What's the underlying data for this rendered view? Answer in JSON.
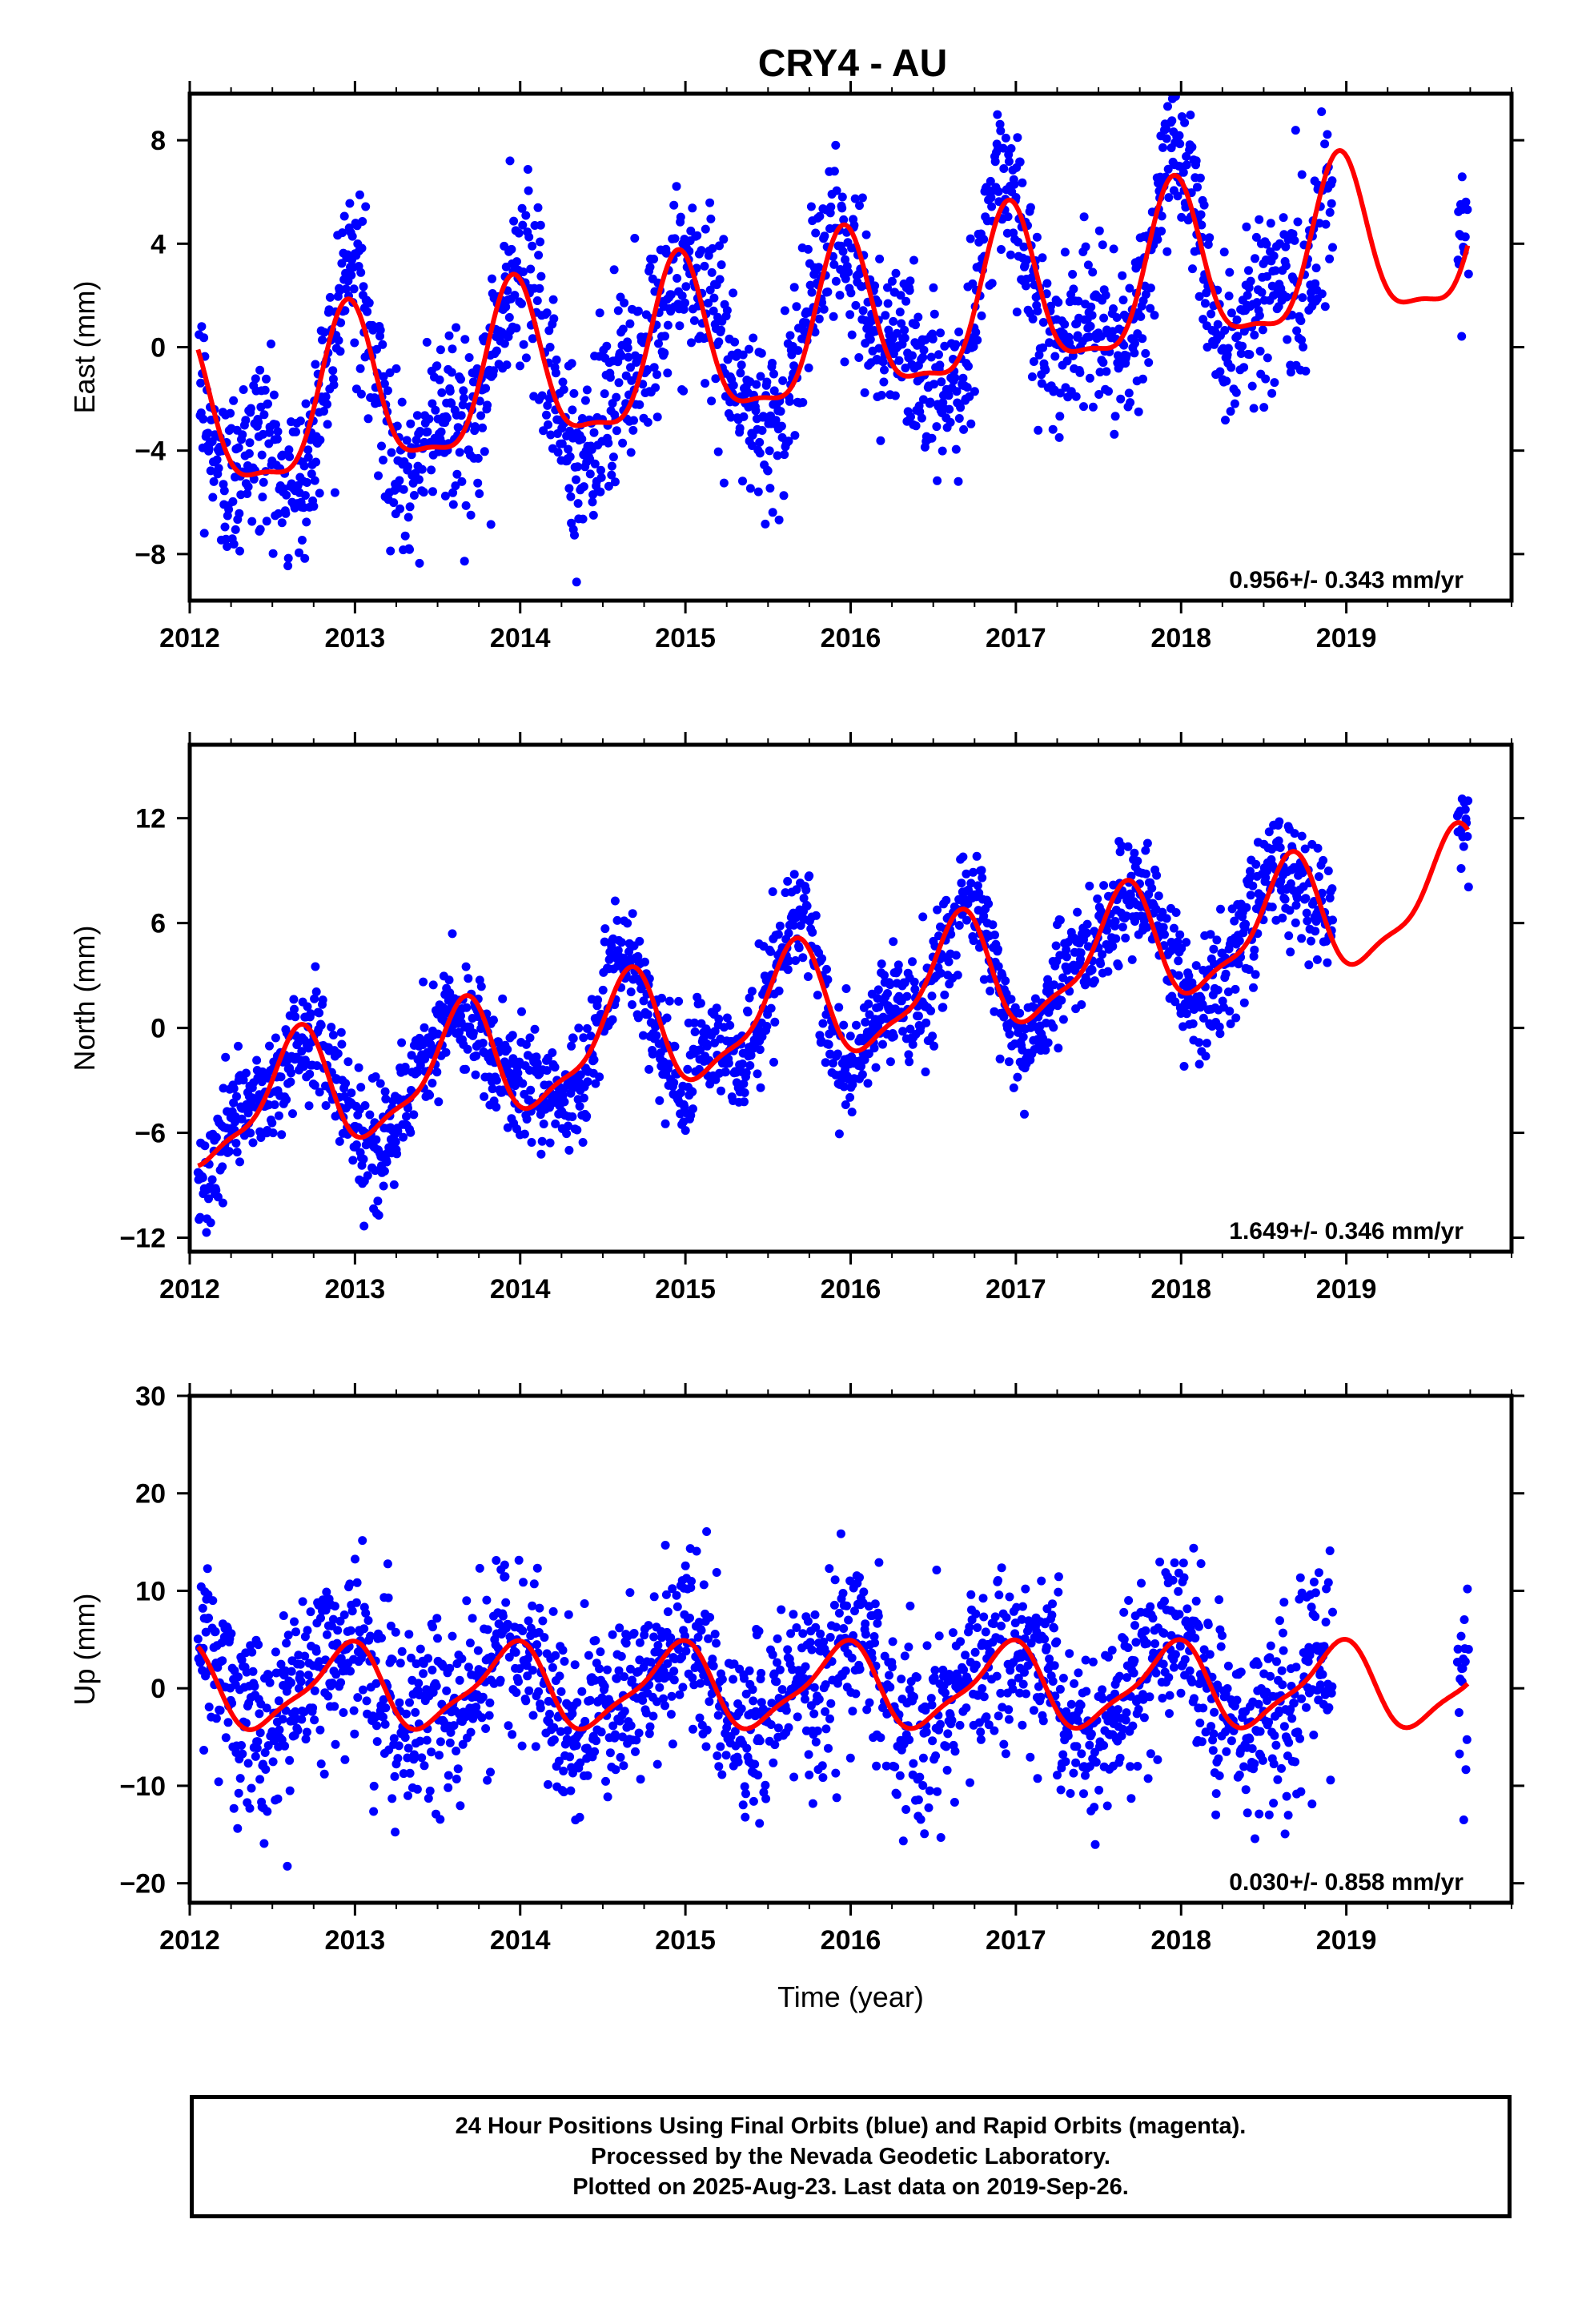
{
  "figure": {
    "title": "CRY4 - AU"
  },
  "chart_data": [
    {
      "type": "scatter",
      "ylabel": "East (mm)",
      "xlabel": "",
      "xlim": [
        2012,
        2020
      ],
      "ylim": [
        -9.8,
        9.8
      ],
      "xticks": [
        "2012",
        "2013",
        "2014",
        "2015",
        "2016",
        "2017",
        "2018",
        "2019"
      ],
      "yticks": [
        "8",
        "4",
        "0",
        "−4",
        "−8"
      ],
      "ytick_values": [
        8,
        4,
        0,
        -4,
        -8
      ],
      "rate_label": "0.956+/- 0.343 mm/yr",
      "points_color": "#0000ff",
      "model_color": "#ff0000",
      "data_range": [
        2012.05,
        2019.74
      ],
      "model": {
        "trend": 0.956,
        "offset": -3.1,
        "annual_sin": -0.8,
        "annual_cos": 3.0,
        "semi_sin": -0.5,
        "semi_cos": 0.8
      },
      "scatter_sd": 1.7,
      "gaps": [
        [
          2018.92,
          2019.67
        ]
      ]
    },
    {
      "type": "scatter",
      "ylabel": "North (mm)",
      "xlabel": "",
      "xlim": [
        2012,
        2020
      ],
      "ylim": [
        -12.8,
        16.2
      ],
      "xticks": [
        "2012",
        "2013",
        "2014",
        "2015",
        "2016",
        "2017",
        "2018",
        "2019"
      ],
      "yticks": [
        "12",
        "6",
        "0",
        "−6",
        "−12"
      ],
      "ytick_values": [
        12,
        6,
        0,
        -6,
        -12
      ],
      "rate_label": "1.649+/- 0.346 mm/yr",
      "points_color": "#0000ff",
      "model_color": "#ff0000",
      "data_range": [
        2012.05,
        2019.74
      ],
      "model": {
        "trend": 1.649,
        "offset": -5.0,
        "annual_sin": -2.5,
        "annual_cos": -2.0,
        "semi_sin": 0.6,
        "semi_cos": -0.8
      },
      "scatter_sd": 1.6,
      "gaps": [
        [
          2018.92,
          2019.67
        ]
      ]
    },
    {
      "type": "scatter",
      "ylabel": "Up (mm)",
      "xlabel": "Time (year)",
      "xlim": [
        2012,
        2020
      ],
      "ylim": [
        -22,
        30
      ],
      "xticks": [
        "2012",
        "2013",
        "2014",
        "2015",
        "2016",
        "2017",
        "2018",
        "2019"
      ],
      "yticks": [
        "30",
        "20",
        "10",
        "0",
        "−10",
        "−20"
      ],
      "ytick_values": [
        30,
        20,
        10,
        0,
        -10,
        -20
      ],
      "rate_label": "0.030+/- 0.858 mm/yr",
      "points_color": "#0000ff",
      "model_color": "#ff0000",
      "data_range": [
        2012.05,
        2019.74
      ],
      "model": {
        "trend": 0.03,
        "offset": 0.0,
        "annual_sin": -1.5,
        "annual_cos": 3.8,
        "semi_sin": 0.5,
        "semi_cos": 1.0
      },
      "scatter_sd": 4.6,
      "gaps": [
        [
          2018.92,
          2019.67
        ]
      ]
    }
  ],
  "caption": {
    "line1": "24 Hour Positions Using Final Orbits (blue) and Rapid Orbits (magenta).",
    "line2": "Processed by the Nevada Geodetic Laboratory.",
    "line3": "Plotted on 2025-Aug-23. Last data on 2019-Sep-26."
  }
}
